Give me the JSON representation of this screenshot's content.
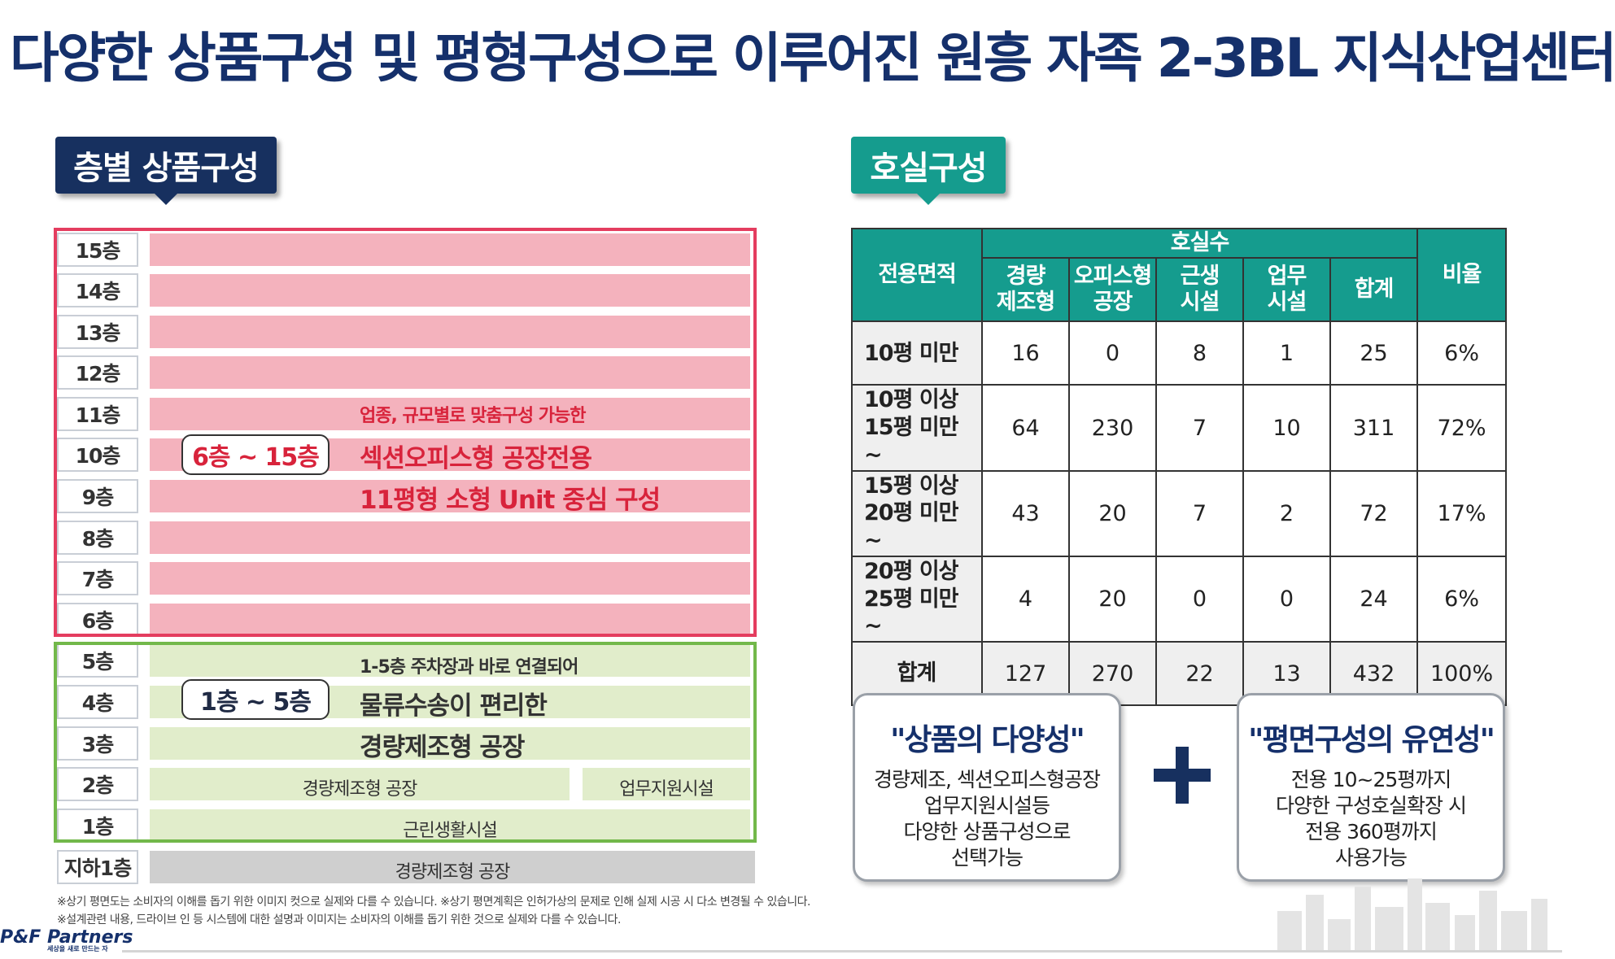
{
  "title": "다양한 상품구성 및 평형구성으로 이루어진 원흥 자족 2-3BL 지식산업센터",
  "left_tag": "층별 상품구성",
  "right_tag": "호실구성",
  "floors": [
    "15층",
    "14층",
    "13층",
    "12층",
    "11층",
    "10층",
    "9층",
    "8층",
    "7층",
    "6층",
    "5층",
    "4층",
    "3층",
    "2층",
    "1층",
    "지하1층"
  ],
  "upper": {
    "range": "6층 ~ 15층",
    "line1": "업종, 규모별로 맞춤구성 가능한",
    "line2": "섹션오피스형 공장전용",
    "line3": "11평형 소형 Unit 중심 구성"
  },
  "lower": {
    "range": "1층 ~ 5층",
    "line1": "1-5층 주차장과 바로 연결되어",
    "line2": "물류수송이 편리한",
    "line3": "경량제조형 공장",
    "floor2_left": "경량제조형 공장",
    "floor2_right": "업무지원시설",
    "floor1": "근린생활시설",
    "basement": "경량제조형 공장"
  },
  "table": {
    "col_area": "전용면적",
    "col_group": "호실수",
    "col_ratio": "비율",
    "sub_cols": [
      "경량\n제조형",
      "오피스형\n공장",
      "근생\n시설",
      "업무\n시설",
      "합계"
    ],
    "rows": [
      {
        "area": "10평 미만",
        "values": [
          "16",
          "0",
          "8",
          "1",
          "25",
          "6%"
        ]
      },
      {
        "area": "10평 이상\n15평 미만 ~",
        "values": [
          "64",
          "230",
          "7",
          "10",
          "311",
          "72%"
        ]
      },
      {
        "area": "15평 이상\n20평 미만 ~",
        "values": [
          "43",
          "20",
          "7",
          "2",
          "72",
          "17%"
        ]
      },
      {
        "area": "20평 이상\n25평 미만 ~",
        "values": [
          "4",
          "20",
          "0",
          "0",
          "24",
          "6%"
        ]
      },
      {
        "area": "합계",
        "values": [
          "127",
          "270",
          "22",
          "13",
          "432",
          "100%"
        ]
      }
    ]
  },
  "card_left": {
    "title": "\"상품의 다양성\"",
    "lines": [
      "경량제조, 섹션오피스형공장",
      "업무지원시설등",
      "다양한 상품구성으로",
      "선택가능"
    ]
  },
  "card_right": {
    "title": "\"평면구성의 유연성\"",
    "lines": [
      "전용 10~25평까지",
      "다양한 구성호실확장 시",
      "전용 360평까지",
      "사용가능"
    ]
  },
  "notes": [
    "※상기 평면도는 소비자의 이해를 돕기 위한 이미지 컷으로 실제와 다를 수 있습니다. ※상기 평면계획은 인허가상의 문제로 인해 실제 시공 시 다소 변경될 수 있습니다.",
    "※설계관련 내용, 드라이브 인 등 시스템에 대한 설명과 이미지는 소비자의 이해를 돕기 위한 것으로 실제와 다를 수 있습니다."
  ],
  "logo": {
    "main": "P&F Partners",
    "sub": "세상을 새로 만드는 자"
  }
}
